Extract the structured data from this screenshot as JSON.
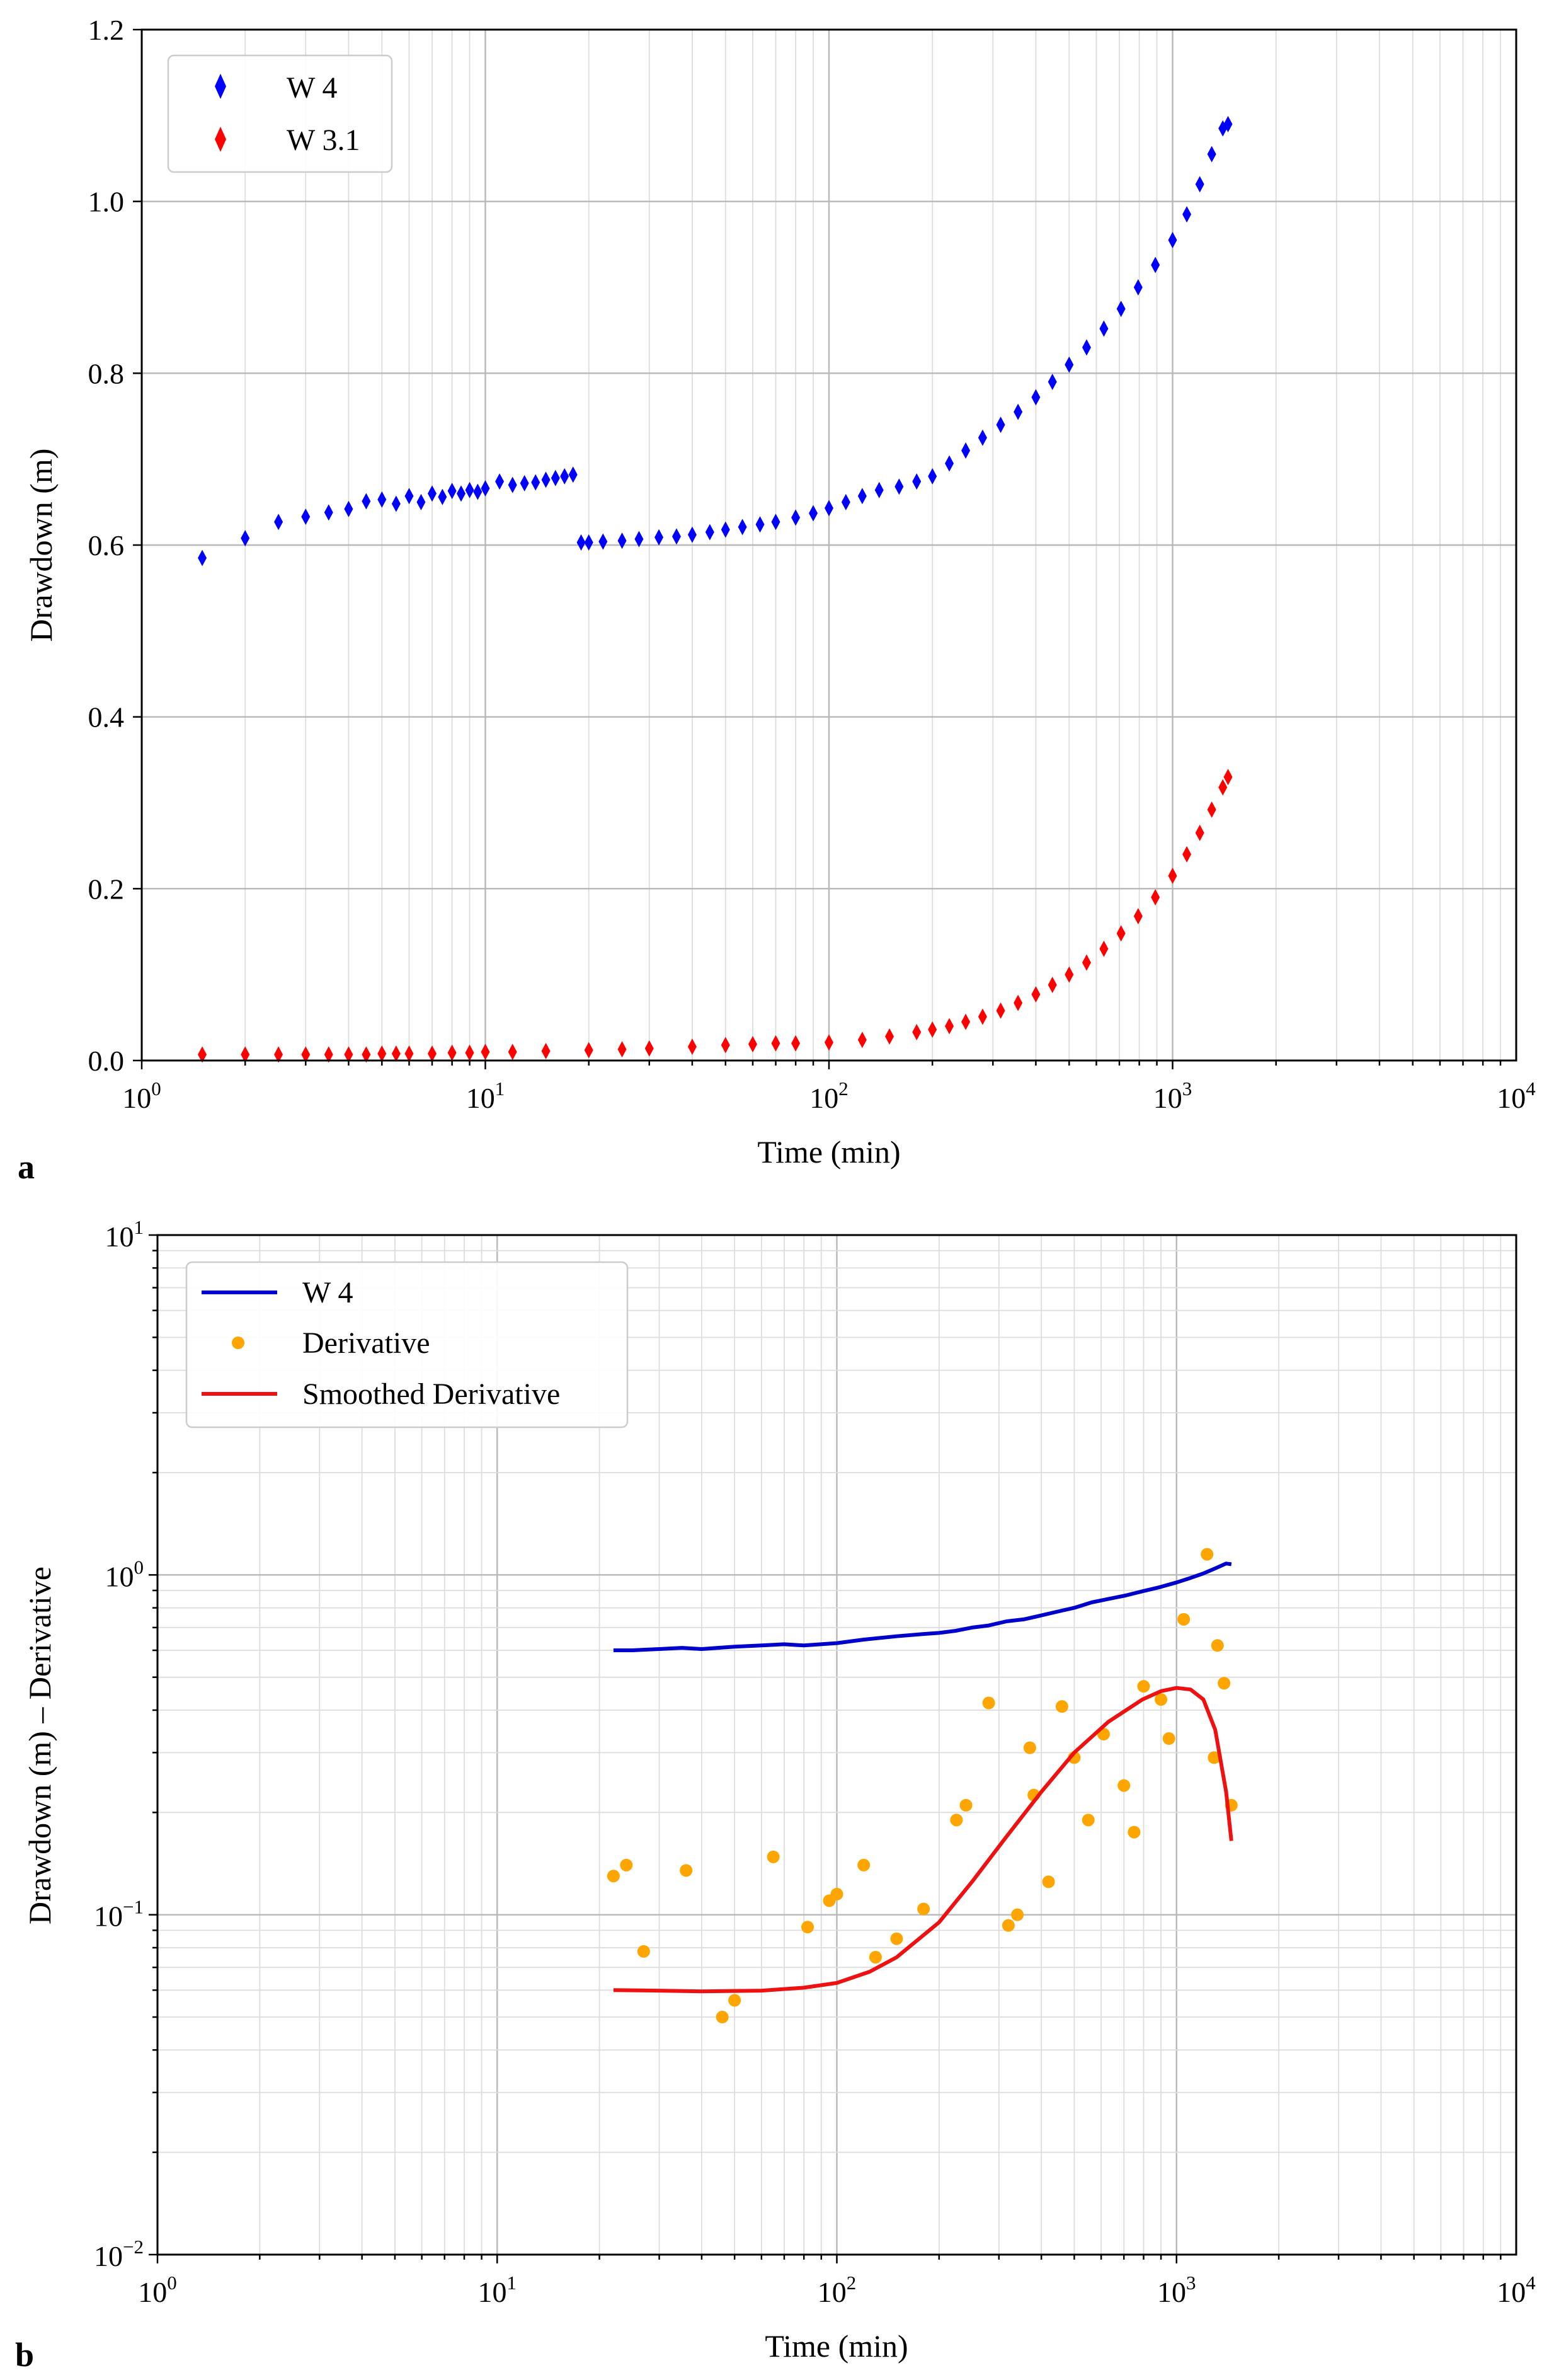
{
  "chart_data": [
    {
      "type": "scatter",
      "panel_label": "a",
      "title": "",
      "xlabel": "Time (min)",
      "ylabel": "Drawdown (m)",
      "xscale": "log",
      "xlim": [
        1,
        10000
      ],
      "ylim": [
        0.0,
        1.2
      ],
      "grid": true,
      "x_tick_labels": [
        {
          "base": "10",
          "exp": "0"
        },
        {
          "base": "10",
          "exp": "1"
        },
        {
          "base": "10",
          "exp": "2"
        },
        {
          "base": "10",
          "exp": "3"
        },
        {
          "base": "10",
          "exp": "4"
        }
      ],
      "y_tick_labels": [
        "0.0",
        "0.2",
        "0.4",
        "0.6",
        "0.8",
        "1.0",
        "1.2"
      ],
      "y_tick_values": [
        0.0,
        0.2,
        0.4,
        0.6,
        0.8,
        1.0,
        1.2
      ],
      "legend_position": "upper-left",
      "series": [
        {
          "name": "W 4",
          "color": "#0000ff",
          "marker": "diamond",
          "x": [
            1.5,
            2,
            2.5,
            3,
            3.5,
            4,
            4.5,
            5,
            5.5,
            6,
            6.5,
            7,
            7.5,
            8,
            8.5,
            9,
            9.5,
            10,
            11,
            12,
            13,
            14,
            15,
            16,
            17,
            18,
            19,
            20,
            22,
            25,
            28,
            32,
            36,
            40,
            45,
            50,
            56,
            63,
            70,
            80,
            90,
            100,
            112,
            125,
            140,
            160,
            180,
            200,
            224,
            250,
            280,
            316,
            355,
            400,
            447,
            500,
            562,
            631,
            708,
            794,
            891,
            1000,
            1100,
            1200,
            1300,
            1400,
            1450
          ],
          "y": [
            0.585,
            0.608,
            0.627,
            0.633,
            0.638,
            0.642,
            0.651,
            0.653,
            0.648,
            0.657,
            0.65,
            0.66,
            0.656,
            0.663,
            0.66,
            0.664,
            0.662,
            0.666,
            0.674,
            0.67,
            0.672,
            0.673,
            0.676,
            0.678,
            0.68,
            0.682,
            0.603,
            0.603,
            0.604,
            0.605,
            0.607,
            0.609,
            0.61,
            0.612,
            0.615,
            0.618,
            0.621,
            0.624,
            0.627,
            0.632,
            0.637,
            0.643,
            0.65,
            0.657,
            0.664,
            0.668,
            0.674,
            0.68,
            0.695,
            0.71,
            0.725,
            0.74,
            0.755,
            0.772,
            0.79,
            0.81,
            0.83,
            0.852,
            0.875,
            0.9,
            0.926,
            0.955,
            0.985,
            1.02,
            1.055,
            1.085,
            1.09
          ]
        },
        {
          "name": "W 3.1",
          "color": "#ff0000",
          "marker": "diamond",
          "x": [
            1.5,
            2,
            2.5,
            3,
            3.5,
            4,
            4.5,
            5,
            5.5,
            6,
            7,
            8,
            9,
            10,
            12,
            15,
            20,
            25,
            30,
            40,
            50,
            60,
            70,
            80,
            100,
            125,
            150,
            180,
            200,
            224,
            250,
            280,
            316,
            355,
            400,
            447,
            500,
            562,
            631,
            708,
            794,
            891,
            1000,
            1100,
            1200,
            1300,
            1400,
            1450
          ],
          "y": [
            0.007,
            0.007,
            0.007,
            0.007,
            0.007,
            0.007,
            0.007,
            0.008,
            0.008,
            0.008,
            0.008,
            0.009,
            0.009,
            0.01,
            0.01,
            0.011,
            0.012,
            0.013,
            0.014,
            0.016,
            0.018,
            0.019,
            0.02,
            0.02,
            0.021,
            0.024,
            0.028,
            0.033,
            0.036,
            0.04,
            0.045,
            0.051,
            0.058,
            0.067,
            0.077,
            0.088,
            0.1,
            0.114,
            0.13,
            0.148,
            0.168,
            0.19,
            0.215,
            0.24,
            0.265,
            0.292,
            0.318,
            0.33
          ]
        }
      ]
    },
    {
      "type": "line",
      "panel_label": "b",
      "title": "",
      "xlabel": "Time (min)",
      "ylabel": "Drawdown (m) – Derivative",
      "xscale": "log",
      "yscale": "log",
      "xlim": [
        1,
        10000
      ],
      "ylim": [
        0.01,
        10
      ],
      "grid": true,
      "x_tick_labels": [
        {
          "base": "10",
          "exp": "0"
        },
        {
          "base": "10",
          "exp": "1"
        },
        {
          "base": "10",
          "exp": "2"
        },
        {
          "base": "10",
          "exp": "3"
        },
        {
          "base": "10",
          "exp": "4"
        }
      ],
      "y_tick_labels": [
        {
          "base": "10",
          "exp": "−2"
        },
        {
          "base": "10",
          "exp": "−1"
        },
        {
          "base": "10",
          "exp": "0"
        },
        {
          "base": "10",
          "exp": "1"
        }
      ],
      "legend_position": "upper-left",
      "series": [
        {
          "name": "W 4",
          "color": "#0000cc",
          "style": "line",
          "x": [
            22,
            25,
            30,
            35,
            40,
            50,
            60,
            70,
            80,
            100,
            120,
            150,
            180,
            200,
            224,
            250,
            280,
            316,
            355,
            400,
            447,
            500,
            562,
            631,
            708,
            794,
            891,
            1000,
            1100,
            1200,
            1300,
            1400,
            1450
          ],
          "y": [
            0.6,
            0.6,
            0.605,
            0.61,
            0.605,
            0.615,
            0.62,
            0.625,
            0.62,
            0.63,
            0.645,
            0.66,
            0.67,
            0.675,
            0.685,
            0.7,
            0.71,
            0.73,
            0.74,
            0.76,
            0.78,
            0.8,
            0.83,
            0.85,
            0.87,
            0.895,
            0.92,
            0.95,
            0.98,
            1.01,
            1.045,
            1.08,
            1.075
          ]
        },
        {
          "name": "Derivative",
          "color": "#ffa500",
          "style": "points",
          "x": [
            22,
            24,
            27,
            36,
            46,
            50,
            65,
            82,
            95,
            100,
            120,
            130,
            150,
            180,
            225,
            240,
            280,
            320,
            340,
            370,
            380,
            420,
            460,
            500,
            550,
            610,
            700,
            750,
            800,
            900,
            950,
            1050,
            1230,
            1290,
            1320,
            1380,
            1450
          ],
          "y": [
            0.13,
            0.14,
            0.078,
            0.135,
            0.05,
            0.056,
            0.148,
            0.092,
            0.11,
            0.115,
            0.14,
            0.075,
            0.085,
            0.104,
            0.19,
            0.21,
            0.42,
            0.093,
            0.1,
            0.31,
            0.225,
            0.125,
            0.41,
            0.29,
            0.19,
            0.34,
            0.24,
            0.175,
            0.47,
            0.43,
            0.33,
            0.74,
            1.15,
            0.29,
            0.62,
            0.48,
            0.21
          ]
        },
        {
          "name": "Smoothed Derivative",
          "color": "#ee1111",
          "style": "line",
          "x": [
            22,
            30,
            40,
            60,
            80,
            100,
            125,
            150,
            200,
            250,
            316,
            400,
            500,
            631,
            794,
            900,
            1000,
            1100,
            1200,
            1300,
            1400,
            1450
          ],
          "y": [
            0.06,
            0.0598,
            0.0595,
            0.0598,
            0.061,
            0.063,
            0.068,
            0.075,
            0.095,
            0.125,
            0.17,
            0.23,
            0.3,
            0.37,
            0.43,
            0.455,
            0.465,
            0.46,
            0.43,
            0.35,
            0.23,
            0.165
          ]
        }
      ]
    }
  ]
}
